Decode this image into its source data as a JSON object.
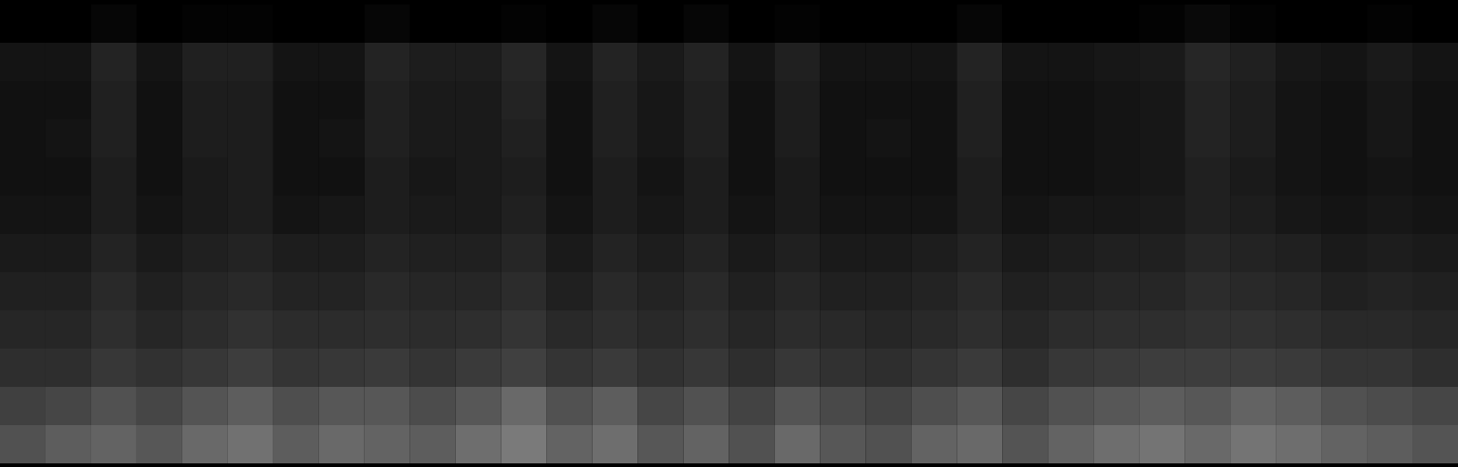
{
  "chart_data": {
    "type": "heatmap",
    "tick_labels": false,
    "cells": [
      [
        6,
        6,
        8,
        6,
        7,
        7,
        6,
        6,
        8,
        6,
        6,
        7,
        6,
        8,
        6,
        8,
        6,
        7,
        6,
        6,
        6,
        8,
        6,
        6,
        6,
        7,
        9,
        7,
        6,
        6,
        7,
        6
      ],
      [
        13,
        13,
        18,
        13,
        17,
        17,
        13,
        13,
        18,
        16,
        16,
        19,
        13,
        18,
        15,
        18,
        13,
        17,
        13,
        13,
        13,
        18,
        13,
        13,
        14,
        15,
        19,
        17,
        14,
        13,
        15,
        13
      ],
      [
        12,
        12,
        17,
        12,
        16,
        16,
        12,
        12,
        17,
        15,
        15,
        18,
        12,
        17,
        14,
        17,
        12,
        16,
        12,
        12,
        12,
        17,
        12,
        12,
        13,
        14,
        18,
        16,
        13,
        12,
        14,
        12
      ],
      [
        12,
        13,
        17,
        12,
        16,
        16,
        12,
        13,
        17,
        15,
        15,
        17,
        12,
        17,
        14,
        17,
        12,
        16,
        12,
        13,
        12,
        17,
        12,
        12,
        13,
        14,
        18,
        16,
        13,
        12,
        14,
        12
      ],
      [
        12,
        12,
        16,
        12,
        15,
        16,
        12,
        12,
        16,
        14,
        15,
        16,
        12,
        16,
        13,
        16,
        12,
        15,
        12,
        12,
        12,
        16,
        12,
        12,
        13,
        14,
        17,
        15,
        13,
        12,
        13,
        12
      ],
      [
        13,
        13,
        16,
        13,
        15,
        16,
        13,
        14,
        16,
        15,
        15,
        17,
        13,
        16,
        14,
        16,
        13,
        15,
        13,
        13,
        13,
        16,
        13,
        14,
        14,
        15,
        17,
        16,
        14,
        13,
        14,
        13
      ],
      [
        15,
        15,
        18,
        15,
        17,
        18,
        16,
        16,
        18,
        17,
        17,
        19,
        15,
        18,
        16,
        18,
        15,
        17,
        15,
        15,
        16,
        18,
        15,
        16,
        17,
        17,
        19,
        18,
        17,
        15,
        16,
        15
      ],
      [
        17,
        17,
        20,
        17,
        19,
        20,
        18,
        18,
        20,
        19,
        19,
        21,
        17,
        20,
        18,
        20,
        17,
        19,
        17,
        17,
        18,
        20,
        17,
        18,
        19,
        19,
        21,
        20,
        19,
        17,
        18,
        17
      ],
      [
        19,
        19,
        22,
        19,
        21,
        23,
        21,
        21,
        22,
        21,
        22,
        24,
        20,
        22,
        20,
        22,
        19,
        21,
        20,
        19,
        20,
        22,
        19,
        21,
        22,
        22,
        23,
        23,
        22,
        20,
        20,
        19
      ],
      [
        22,
        22,
        25,
        23,
        25,
        27,
        24,
        25,
        26,
        24,
        26,
        28,
        24,
        26,
        23,
        25,
        22,
        25,
        23,
        22,
        24,
        26,
        22,
        25,
        26,
        27,
        27,
        27,
        26,
        24,
        24,
        22
      ],
      [
        28,
        30,
        34,
        30,
        35,
        38,
        33,
        36,
        36,
        32,
        36,
        42,
        34,
        38,
        30,
        34,
        29,
        35,
        31,
        29,
        33,
        36,
        30,
        34,
        36,
        38,
        36,
        40,
        38,
        34,
        32,
        30
      ],
      [
        34,
        38,
        40,
        36,
        42,
        45,
        38,
        42,
        40,
        38,
        44,
        48,
        40,
        44,
        36,
        40,
        34,
        42,
        36,
        34,
        40,
        42,
        35,
        40,
        44,
        46,
        42,
        46,
        44,
        40,
        38,
        35
      ]
    ]
  }
}
